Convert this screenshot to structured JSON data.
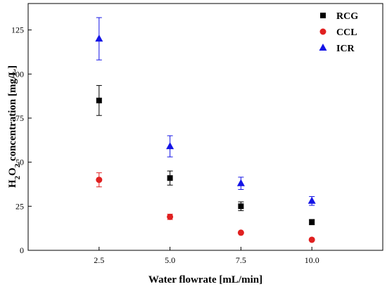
{
  "chart_data": {
    "type": "scatter",
    "x": [
      2.5,
      5.0,
      7.5,
      10.0
    ],
    "xticks": [
      "2.5",
      "5.0",
      "7.5",
      "10.0"
    ],
    "yticks": [
      "0",
      "25",
      "50",
      "75",
      "100",
      "125"
    ],
    "xlim": [
      0,
      12.5
    ],
    "ylim": [
      0,
      140
    ],
    "xlabel": "Water flowrate [mL/min]",
    "ylabel_parts": [
      "H",
      "2",
      "O",
      "2",
      " concentration [mg/L]"
    ],
    "legend_position": "top-right",
    "series": [
      {
        "name": "RCG",
        "marker": "square",
        "color": "#000000",
        "values": [
          85,
          41,
          25,
          16
        ],
        "errors": [
          8.5,
          4,
          2.5,
          1.5
        ]
      },
      {
        "name": "CCL",
        "marker": "circle",
        "color": "#e02020",
        "values": [
          40,
          19,
          10,
          6
        ],
        "errors": [
          4,
          1.5,
          0.5,
          0.5
        ]
      },
      {
        "name": "ICR",
        "marker": "triangle",
        "color": "#1414e6",
        "values": [
          120,
          59,
          38,
          28
        ],
        "errors": [
          12,
          6,
          3.5,
          2.5
        ]
      }
    ]
  }
}
